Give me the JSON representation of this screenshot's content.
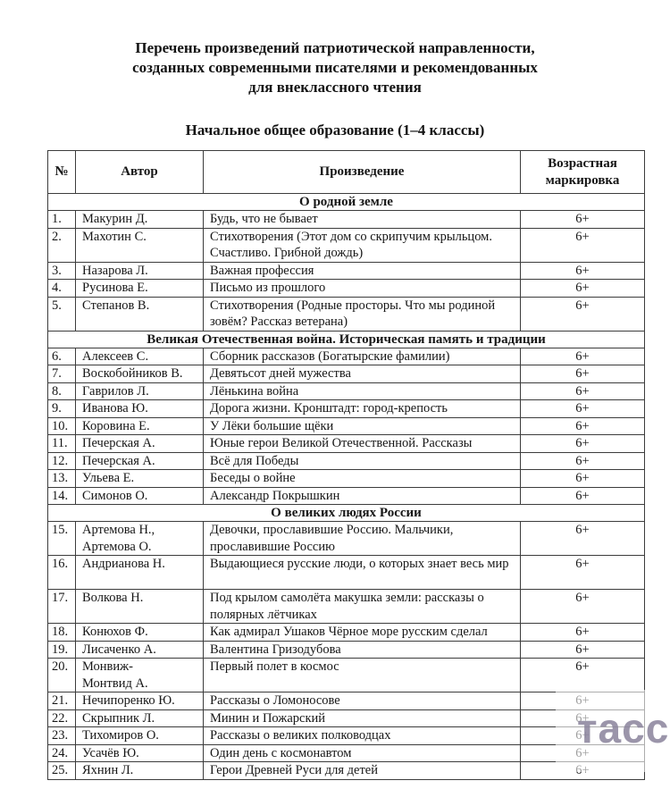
{
  "page": {
    "title": "Перечень произведений патриотической направленности,\nсозданных современными писателями и рекомендованных\nдля внеклассного чтения",
    "subtitle": "Начальное общее образование (1–4 классы)"
  },
  "watermark": {
    "text": "тасс",
    "color": "#8a839c"
  },
  "table": {
    "headers": [
      "№",
      "Автор",
      "Произведение",
      "Возрастная маркировка"
    ],
    "age_default": "6+",
    "rows": [
      {
        "type": "section",
        "label": "О родной земле"
      },
      {
        "type": "item",
        "num": "1.",
        "author": "Макурин Д.",
        "work": "Будь, что не бывает",
        "age": "6+"
      },
      {
        "type": "item",
        "num": "2.",
        "author": "Махотин С.",
        "work": "Стихотворения (Этот дом со скрипучим крыльцом. Счастливо. Грибной дождь)",
        "age": "6+"
      },
      {
        "type": "item",
        "num": "3.",
        "author": "Назарова Л.",
        "work": "Важная профессия",
        "age": "6+"
      },
      {
        "type": "item",
        "num": "4.",
        "author": "Русинова Е.",
        "work": "Письмо из прошлого",
        "age": "6+"
      },
      {
        "type": "item",
        "num": "5.",
        "author": "Степанов В.",
        "work": "Стихотворения (Родные просторы. Что мы родиной зовём? Рассказ ветерана)",
        "age": "6+"
      },
      {
        "type": "section",
        "label": "Великая Отечественная война. Историческая память и традиции"
      },
      {
        "type": "item",
        "num": "6.",
        "author": "Алексеев С.",
        "work": "Сборник рассказов (Богатырские фамилии)",
        "age": "6+"
      },
      {
        "type": "item",
        "num": "7.",
        "author": "Воскобойников В.",
        "work": "Девятьсот дней мужества",
        "age": "6+"
      },
      {
        "type": "item",
        "num": "8.",
        "author": "Гаврилов Л.",
        "work": "Лёнькина война",
        "age": "6+"
      },
      {
        "type": "item",
        "num": "9.",
        "author": "Иванова Ю.",
        "work": "Дорога жизни. Кронштадт: город-крепость",
        "age": "6+"
      },
      {
        "type": "item",
        "num": "10.",
        "author": "Коровина Е.",
        "work": "У Лёки большие щёки",
        "age": "6+"
      },
      {
        "type": "item",
        "num": "11.",
        "author": "Печерская А.",
        "work": "Юные герои Великой Отечественной. Рассказы",
        "age": "6+"
      },
      {
        "type": "item",
        "num": "12.",
        "author": "Печерская А.",
        "work": "Всё для Победы",
        "age": "6+"
      },
      {
        "type": "item",
        "num": "13.",
        "author": "Ульева Е.",
        "work": "Беседы о войне",
        "age": "6+"
      },
      {
        "type": "item",
        "num": "14.",
        "author": "Симонов О.",
        "work": "Александр Покрышкин",
        "age": "6+"
      },
      {
        "type": "section",
        "label": "О великих людях России"
      },
      {
        "type": "item",
        "num": "15.",
        "author": "Артемова Н.,\nАртемова О.",
        "work": "Девочки, прославившие Россию. Мальчики, прославившие Россию",
        "age": "6+"
      },
      {
        "type": "item",
        "num": "16.",
        "author": "Андрианова Н.",
        "work": "Выдающиеся русские люди, о которых знает весь мир",
        "age": "6+",
        "tall": true
      },
      {
        "type": "item",
        "num": "17.",
        "author": "Волкова Н.",
        "work": "Под крылом самолёта макушка земли: рассказы о полярных лётчиках",
        "age": "6+"
      },
      {
        "type": "item",
        "num": "18.",
        "author": "Конюхов Ф.",
        "work": "Как адмирал Ушаков Чёрное море русским сделал",
        "age": "6+"
      },
      {
        "type": "item",
        "num": "19.",
        "author": "Лисаченко А.",
        "work": "Валентина Гризодубова",
        "age": "6+"
      },
      {
        "type": "item",
        "num": "20.",
        "author": "Монвиж-\nМонтвид А.",
        "work": "Первый полет в космос",
        "age": "6+"
      },
      {
        "type": "item",
        "num": "21.",
        "author": "Нечипоренко Ю.",
        "work": "Рассказы о Ломоносове",
        "age": "6+"
      },
      {
        "type": "item",
        "num": "22.",
        "author": "Скрыпник Л.",
        "work": "Минин и Пожарский",
        "age": "6+"
      },
      {
        "type": "item",
        "num": "23.",
        "author": "Тихомиров О.",
        "work": "Рассказы о великих полководцах",
        "age": "6+"
      },
      {
        "type": "item",
        "num": "24.",
        "author": "Усачёв Ю.",
        "work": "Один день с космонавтом",
        "age": "6+"
      },
      {
        "type": "item",
        "num": "25.",
        "author": "Яхнин Л.",
        "work": "Герои Древней Руси для детей",
        "age": "6+"
      }
    ]
  }
}
